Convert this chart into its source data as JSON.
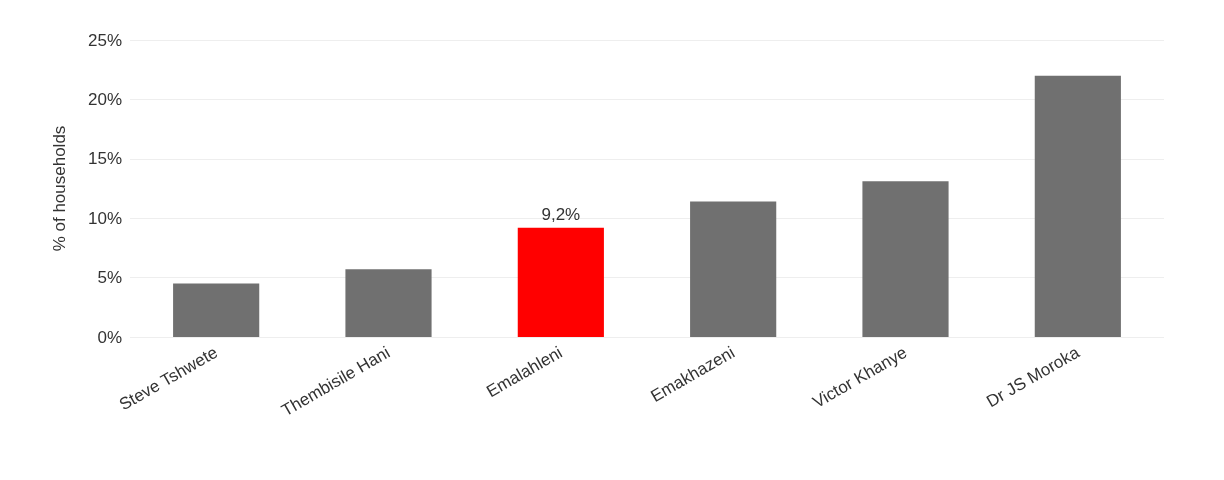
{
  "chart_data": {
    "type": "bar",
    "ylabel": "% of households",
    "categories": [
      "Steve Tshwete",
      "Thembisile Hani",
      "Emalahleni",
      "Emakhazeni",
      "Victor Khanye",
      "Dr JS Moroka"
    ],
    "values": [
      4.5,
      5.7,
      9.2,
      11.4,
      13.1,
      22.0
    ],
    "colors": [
      "#707070",
      "#707070",
      "#ff0000",
      "#707070",
      "#707070",
      "#707070"
    ],
    "value_labels": [
      null,
      null,
      "9,2%",
      null,
      null,
      null
    ],
    "ylim": [
      0,
      25
    ],
    "yticks": [
      {
        "value": 0,
        "label": "0%"
      },
      {
        "value": 5,
        "label": "5%"
      },
      {
        "value": 10,
        "label": "10%"
      },
      {
        "value": 15,
        "label": "15%"
      },
      {
        "value": 20,
        "label": "20%"
      },
      {
        "value": 25,
        "label": "25%"
      }
    ],
    "grid": "y"
  }
}
